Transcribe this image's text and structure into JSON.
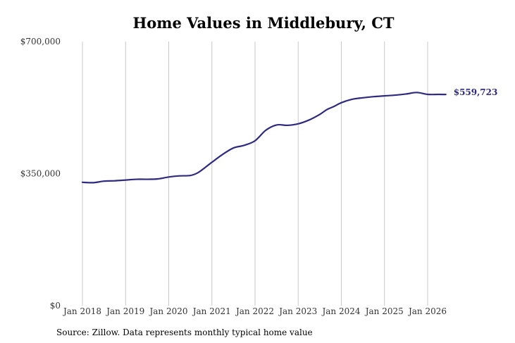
{
  "title": "Home Values in Middlebury, CT",
  "source": "Source: Zillow. Data represents monthly typical home value",
  "colors": {
    "line": "#2e2a7f",
    "grid": "#c8c8c8"
  },
  "chart_data": {
    "type": "line",
    "title": "Home Values in Middlebury, CT",
    "xlabel": "",
    "ylabel": "",
    "ylim": [
      0,
      700000
    ],
    "y_ticks": [
      0,
      350000,
      700000
    ],
    "y_tick_labels": [
      "$0",
      "$350,000",
      "$700,000"
    ],
    "x_ticks": [
      2018,
      2019,
      2020,
      2021,
      2022,
      2023,
      2024,
      2025,
      2026
    ],
    "x_tick_labels": [
      "Jan 2018",
      "Jan 2019",
      "Jan 2020",
      "Jan 2021",
      "Jan 2022",
      "Jan 2023",
      "Jan 2024",
      "Jan 2025",
      "Jan 2026"
    ],
    "grid": "vertical",
    "end_label": "$559,723",
    "series": [
      {
        "x": [
          2018.0,
          2018.25,
          2018.5,
          2018.75,
          2019.0,
          2019.25,
          2019.5,
          2019.75,
          2020.0,
          2020.25,
          2020.5,
          2020.67,
          2020.83,
          2021.0,
          2021.25,
          2021.5,
          2021.75,
          2022.0,
          2022.25,
          2022.5,
          2022.75,
          2023.0,
          2023.25,
          2023.5,
          2023.67,
          2023.83,
          2024.0,
          2024.25,
          2024.5,
          2024.75,
          2025.0,
          2025.25,
          2025.5,
          2025.75,
          2026.0,
          2026.25,
          2026.42
        ],
        "values": [
          327000,
          326000,
          330000,
          331000,
          333000,
          335000,
          335000,
          336000,
          341000,
          344000,
          345000,
          352000,
          365000,
          380000,
          401000,
          418000,
          425000,
          437000,
          465000,
          479000,
          478000,
          482000,
          492000,
          507000,
          520000,
          528000,
          538000,
          547000,
          551000,
          554000,
          556000,
          558000,
          561000,
          565000,
          560000,
          560000,
          559723
        ]
      }
    ]
  }
}
